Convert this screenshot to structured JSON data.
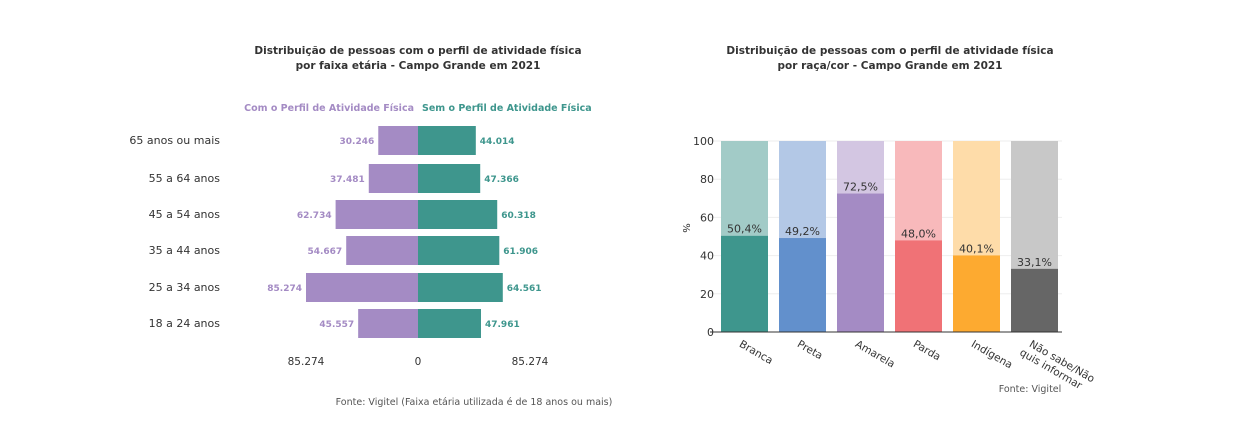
{
  "chart_data": [
    {
      "type": "bar",
      "orientation": "horizontal-diverging",
      "title": [
        "Distribuição de pessoas com o perfil de atividade física",
        "por faixa etária - Campo Grande em 2021"
      ],
      "categories": [
        "65 anos ou mais",
        "55 a 64 anos",
        "45 a 54 anos",
        "35 a 44 anos",
        "25 a 34 anos",
        "18 a 24 anos"
      ],
      "series": [
        {
          "name": "Com o Perfil de Atividade Física",
          "color": "#a48bc4",
          "values": [
            30246,
            37481,
            62734,
            54667,
            85274,
            45557
          ],
          "labels": [
            "30.246",
            "37.481",
            "62.734",
            "54.667",
            "85.274",
            "45.557"
          ]
        },
        {
          "name": "Sem o Perfil de Atividade Física",
          "color": "#3e968d",
          "values": [
            44014,
            47366,
            60318,
            61906,
            64561,
            47961
          ],
          "labels": [
            "44.014",
            "47.366",
            "60.318",
            "61.906",
            "64.561",
            "47.961"
          ]
        }
      ],
      "xlim": [
        -85274,
        85274
      ],
      "xticks": [
        "85.274",
        "0",
        "85.274"
      ],
      "source": "Fonte: Vigitel (Faixa etária utilizada é de 18 anos ou mais)"
    },
    {
      "type": "bar",
      "stacked": true,
      "title": [
        "Distribuição de pessoas com o perfil de atividade física",
        "por raça/cor - Campo Grande em 2021"
      ],
      "categories": [
        "Branca",
        "Preta",
        "Amarela",
        "Parda",
        "Indígena",
        "Não sabe/Não|quis informar"
      ],
      "values": [
        50.4,
        49.2,
        72.5,
        48.0,
        40.1,
        33.1
      ],
      "labels": [
        "50,4%",
        "49,2%",
        "72,5%",
        "48,0%",
        "40,1%",
        "33,1%"
      ],
      "colors": [
        "#3e968d",
        "#6290cc",
        "#a48bc4",
        "#f07276",
        "#fdaa30",
        "#666666"
      ],
      "light_colors": [
        "#a2cbc7",
        "#b3c8e6",
        "#d3c6e2",
        "#f8b9bb",
        "#fedca9",
        "#c8c8c8"
      ],
      "ylabel": "%",
      "ylim": [
        0,
        100
      ],
      "yticks": [
        0,
        20,
        40,
        60,
        80,
        100
      ],
      "source": "Fonte: Vigitel"
    }
  ]
}
